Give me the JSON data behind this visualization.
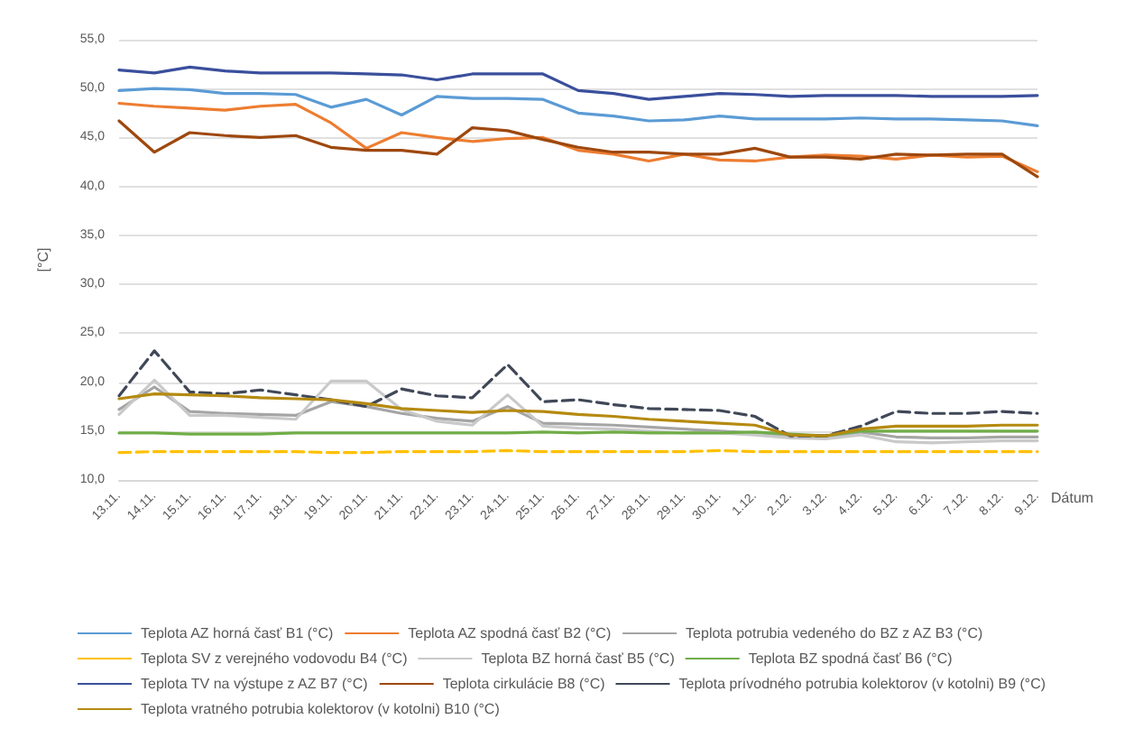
{
  "chart_data": {
    "type": "line",
    "xlabel": "Dátum",
    "ylabel": "[°C]",
    "categories": [
      "13.11.",
      "14.11.",
      "15.11.",
      "16.11.",
      "17.11.",
      "18.11.",
      "19.11.",
      "20.11.",
      "21.11.",
      "22.11.",
      "23.11.",
      "24.11.",
      "25.11.",
      "26.11.",
      "27.11.",
      "28.11.",
      "29.11.",
      "30.11.",
      "1.12.",
      "2.12.",
      "3.12.",
      "4.12.",
      "5.12.",
      "6.12.",
      "7.12.",
      "8.12.",
      "9.12."
    ],
    "ylim": [
      10,
      55
    ],
    "yticks": [
      {
        "value": 10,
        "label": "10,0"
      },
      {
        "value": 15,
        "label": "15,0"
      },
      {
        "value": 20,
        "label": "20,0"
      },
      {
        "value": 25,
        "label": "25,0"
      },
      {
        "value": 30,
        "label": "30,0"
      },
      {
        "value": 35,
        "label": "35,0"
      },
      {
        "value": 40,
        "label": "40,0"
      },
      {
        "value": 45,
        "label": "45,0"
      },
      {
        "value": 50,
        "label": "50,0"
      },
      {
        "value": 55,
        "label": "55,0"
      }
    ],
    "grid": "y",
    "legend": "bottom",
    "marker": "none",
    "series": [
      {
        "name": "Teplota AZ horná časť B1 (°C)",
        "color": "#5b9bd5",
        "values": [
          49.8,
          50.0,
          49.9,
          49.5,
          49.5,
          49.4,
          48.1,
          48.9,
          47.3,
          49.2,
          49.0,
          49.0,
          48.9,
          47.5,
          47.2,
          46.7,
          46.8,
          47.2,
          46.9,
          46.9,
          46.9,
          47.0,
          46.9,
          46.9,
          46.8,
          46.7,
          46.2
        ]
      },
      {
        "name": "Teplota AZ spodná časť B2 (°C)",
        "color": "#ed7d31",
        "values": [
          48.5,
          48.2,
          48.0,
          47.8,
          48.2,
          48.4,
          46.5,
          43.9,
          45.5,
          45.0,
          44.6,
          44.9,
          45.0,
          43.7,
          43.3,
          42.6,
          43.3,
          42.7,
          42.6,
          43.0,
          43.2,
          43.1,
          42.8,
          43.2,
          43.0,
          43.1,
          41.5
        ]
      },
      {
        "name": "Teplota potrubia vedeného do BZ z AZ B3 (°C)",
        "color": "#a5a5a5",
        "values": [
          17.2,
          19.5,
          17.0,
          16.8,
          16.7,
          16.6,
          18.0,
          17.5,
          16.8,
          16.3,
          16.0,
          17.5,
          15.8,
          15.7,
          15.6,
          15.4,
          15.2,
          15.0,
          14.8,
          14.4,
          14.3,
          14.9,
          14.4,
          14.3,
          14.3,
          14.4,
          14.4
        ]
      },
      {
        "name": "Teplota SV z verejného vodovodu B4 (°C)",
        "color": "#ffc000",
        "line_style": "dashed",
        "values": [
          12.8,
          12.9,
          12.9,
          12.9,
          12.9,
          12.9,
          12.8,
          12.8,
          12.9,
          12.9,
          12.9,
          13.0,
          12.9,
          12.9,
          12.9,
          12.9,
          12.9,
          13.0,
          12.9,
          12.9,
          12.9,
          12.9,
          12.9,
          12.9,
          12.9,
          12.9,
          12.9
        ]
      },
      {
        "name": "Teplota BZ horná časť B5 (°C)",
        "color": "#c9c9c9",
        "values": [
          16.7,
          20.2,
          16.6,
          16.6,
          16.4,
          16.2,
          20.1,
          20.1,
          17.2,
          16.0,
          15.6,
          18.7,
          15.5,
          15.3,
          15.2,
          15.0,
          14.8,
          14.8,
          14.6,
          14.3,
          14.2,
          14.6,
          13.9,
          13.8,
          13.9,
          14.0,
          14.0
        ]
      },
      {
        "name": "Teplota BZ spodná časť B6 (°C)",
        "color": "#70ad47",
        "values": [
          14.8,
          14.8,
          14.7,
          14.7,
          14.7,
          14.8,
          14.8,
          14.8,
          14.8,
          14.8,
          14.8,
          14.8,
          14.9,
          14.8,
          14.9,
          14.8,
          14.8,
          14.8,
          14.9,
          14.7,
          14.5,
          15.0,
          15.0,
          15.0,
          15.0,
          15.0,
          15.0
        ]
      },
      {
        "name": "Teplota TV na výstupe z AZ B7 (°C)",
        "color": "#3a4f9c",
        "values": [
          51.9,
          51.6,
          52.2,
          51.8,
          51.6,
          51.6,
          51.6,
          51.5,
          51.4,
          50.9,
          51.5,
          51.5,
          51.5,
          49.8,
          49.5,
          48.9,
          49.2,
          49.5,
          49.4,
          49.2,
          49.3,
          49.3,
          49.3,
          49.2,
          49.2,
          49.2,
          49.3
        ]
      },
      {
        "name": "Teplota cirkulácie B8 (°C)",
        "color": "#9e480e",
        "values": [
          46.7,
          43.5,
          45.5,
          45.2,
          45.0,
          45.2,
          44.0,
          43.7,
          43.7,
          43.3,
          46.0,
          45.7,
          44.8,
          44.0,
          43.5,
          43.5,
          43.3,
          43.3,
          43.9,
          43.0,
          43.0,
          42.8,
          43.3,
          43.2,
          43.3,
          43.3,
          41.0
        ]
      },
      {
        "name": "Teplota prívodného potrubia kolektorov (v kotolni) B9 (°C)",
        "color": "#404858",
        "line_style": "dashed",
        "values": [
          18.6,
          23.2,
          19.0,
          18.8,
          19.2,
          18.7,
          18.2,
          17.5,
          19.3,
          18.6,
          18.4,
          21.8,
          18.0,
          18.2,
          17.7,
          17.3,
          17.2,
          17.1,
          16.5,
          14.5,
          14.5,
          15.5,
          17.0,
          16.8,
          16.8,
          17.0,
          16.8
        ]
      },
      {
        "name": "Teplota vratného potrubia kolektorov (v kotolni) B10 (°C)",
        "color": "#b58a10",
        "values": [
          18.3,
          18.8,
          18.7,
          18.6,
          18.4,
          18.3,
          18.2,
          17.8,
          17.3,
          17.1,
          16.9,
          17.1,
          17.0,
          16.7,
          16.5,
          16.2,
          16.0,
          15.8,
          15.6,
          14.6,
          14.5,
          15.2,
          15.5,
          15.5,
          15.5,
          15.6,
          15.6
        ]
      }
    ]
  }
}
